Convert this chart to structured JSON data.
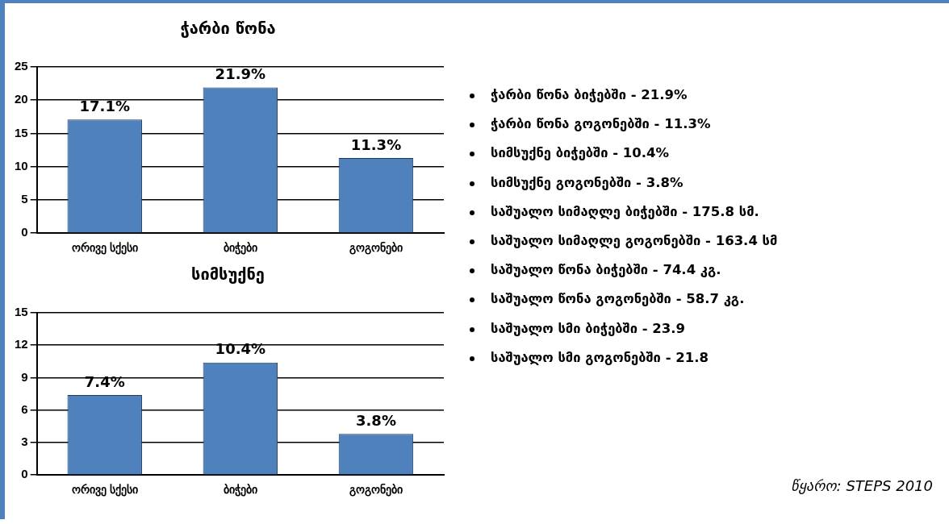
{
  "chart_data": [
    {
      "type": "bar",
      "title": "ჭარბი წონა",
      "categories": [
        "ორივე სქესი",
        "ბიჭები",
        "გოგონები"
      ],
      "values": [
        17.1,
        21.9,
        11.3
      ],
      "value_labels": [
        "17.1%",
        "21.9%",
        "11.3%"
      ],
      "color": "#4f81bd",
      "ylim": [
        0,
        25
      ],
      "yticks": [
        0,
        5,
        10,
        15,
        20,
        25
      ],
      "grid": "y"
    },
    {
      "type": "bar",
      "title": "სიმსუქნე",
      "categories": [
        "ორივე სქესი",
        "ბიჭები",
        "გოგონები"
      ],
      "values": [
        7.4,
        10.4,
        3.8
      ],
      "value_labels": [
        "7.4%",
        "10.4%",
        "3.8%"
      ],
      "color": "#4f81bd",
      "ylim": [
        0,
        15
      ],
      "yticks": [
        0,
        3,
        6,
        9,
        12,
        15
      ],
      "grid": "y"
    },
    {
      "type": "other",
      "annotations": [
        "ჭარბი წონა ბიჭებში - 21.9%",
        "ჭარბი წონა გოგონებში - 11.3%",
        "სიმსუქნე ბიჭებში - 10.4%",
        "სიმსუქნე გოგონებში - 3.8%",
        "საშუალო სიმაღლე ბიჭებში - 175.8 სმ.",
        "საშუალო სიმაღლე გოგონებში - 163.4 სმ",
        "საშუალო წონა ბიჭებში - 74.4 კგ.",
        "საშუალო წონა გოგონებში - 58.7 კგ.",
        "საშუალო სმი ბიჭებში - 23.9",
        "საშუალო სმი გოგონებში - 21.8",
        "წყარო:  STEPS 2010"
      ]
    }
  ]
}
